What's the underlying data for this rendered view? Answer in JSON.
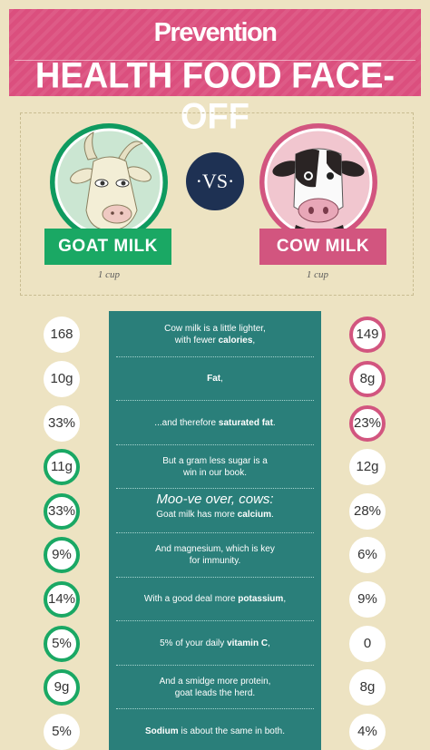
{
  "header": {
    "brand": "Prevention",
    "title": "HEALTH FOOD FACE-OFF"
  },
  "left": {
    "label": "GOAT MILK",
    "serving": "1 cup"
  },
  "right": {
    "label": "COW MILK",
    "serving": "1 cup"
  },
  "vs": "·VS·",
  "rows": [
    {
      "goat": "168",
      "cow": "149",
      "ring": "cow",
      "pre": "Cow milk is a little lighter,",
      "line2": "with fewer ",
      "bold": "calories",
      "post": ","
    },
    {
      "goat": "10g",
      "cow": "8g",
      "ring": "cow",
      "pre": "",
      "line2": "",
      "bold": "Fat",
      "post": ","
    },
    {
      "goat": "33%",
      "cow": "23%",
      "ring": "cow",
      "pre": "",
      "line2": "...and therefore ",
      "bold": "saturated fat",
      "post": "."
    },
    {
      "goat": "11g",
      "cow": "12g",
      "ring": "goat",
      "pre": "But a gram less sugar is a",
      "line2": "win in our book.",
      "bold": "",
      "post": ""
    },
    {
      "goat": "33%",
      "cow": "28%",
      "ring": "goat",
      "heading": "Moo-ve over, cows:",
      "pre": "",
      "line2": "Goat milk has more ",
      "bold": "calcium",
      "post": "."
    },
    {
      "goat": "9%",
      "cow": "6%",
      "ring": "goat",
      "pre": "And magnesium, which is key",
      "line2": "for immunity.",
      "bold": "",
      "post": ""
    },
    {
      "goat": "14%",
      "cow": "9%",
      "ring": "goat",
      "pre": "",
      "line2": "With a good deal more ",
      "bold": "potassium",
      "post": ","
    },
    {
      "goat": "5%",
      "cow": "0",
      "ring": "goat",
      "pre": "",
      "line2": "5% of your daily ",
      "bold": "vitamin C",
      "post": ","
    },
    {
      "goat": "9g",
      "cow": "8g",
      "ring": "goat",
      "pre": "And a smidge more protein,",
      "line2": "goat leads the herd.",
      "bold": "",
      "post": ""
    },
    {
      "goat": "5%",
      "cow": "4%",
      "ring": "none",
      "pre": "",
      "line2": "",
      "bold": "Sodium",
      "post": " is about the same in both."
    }
  ],
  "colors": {
    "pink": "#d2557f",
    "green": "#1aa864",
    "teal": "#2a7f7a",
    "navy": "#1e3153",
    "cream": "#ede3c2"
  },
  "icons": [
    "goat-illustration",
    "cow-illustration"
  ]
}
